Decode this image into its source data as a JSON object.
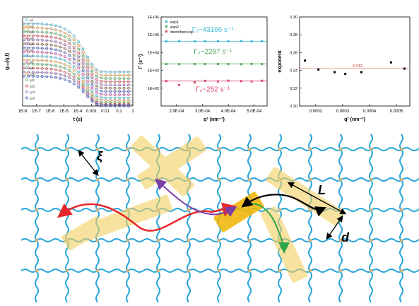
{
  "chart_data": [
    {
      "type": "scatter",
      "ylabel": "g₍₂₎(q,t)",
      "xlabel": "t (s)",
      "xscale": "log",
      "xlim": [
        1e-08,
        1
      ],
      "ylim": [
        1.0,
        2.1
      ],
      "xtick_labels": [
        "1E-8",
        "1E-7",
        "1E-6",
        "1E-5",
        "1E-4",
        "0.001",
        "0.01",
        "0.1",
        "1"
      ],
      "legend": [
        "q1",
        "q2",
        "q3",
        "q4",
        "q5",
        "q6",
        "q7",
        "q8",
        "q9",
        "q10",
        "q11",
        "q12",
        "q13",
        "q14"
      ],
      "series": [
        {
          "name": "q1",
          "color": "#3fb8d6",
          "plateau": 2.02,
          "baseline": 1.42,
          "tau": 0.0004
        },
        {
          "name": "q2",
          "color": "#e89a3c",
          "plateau": 1.97,
          "baseline": 1.38,
          "tau": 0.0004
        },
        {
          "name": "q3",
          "color": "#52a95c",
          "plateau": 1.92,
          "baseline": 1.34,
          "tau": 0.0004
        },
        {
          "name": "q4",
          "color": "#d9464f",
          "plateau": 1.87,
          "baseline": 1.3,
          "tau": 0.0004
        },
        {
          "name": "q5",
          "color": "#8e62b5",
          "plateau": 1.82,
          "baseline": 1.26,
          "tau": 0.0004
        },
        {
          "name": "q6",
          "color": "#8b5a3a",
          "plateau": 1.77,
          "baseline": 1.22,
          "tau": 0.0004
        },
        {
          "name": "q7",
          "color": "#3a56c5",
          "plateau": 1.72,
          "baseline": 1.18,
          "tau": 0.0004
        },
        {
          "name": "q8",
          "color": "#d24aa5",
          "plateau": 1.67,
          "baseline": 1.14,
          "tau": 0.0004
        },
        {
          "name": "q9",
          "color": "#3fb8d6",
          "plateau": 1.62,
          "baseline": 1.1,
          "tau": 0.0004
        },
        {
          "name": "q10",
          "color": "#e89a3c",
          "plateau": 1.57,
          "baseline": 1.07,
          "tau": 0.0004
        },
        {
          "name": "q11",
          "color": "#52a95c",
          "plateau": 1.52,
          "baseline": 1.04,
          "tau": 0.0004
        },
        {
          "name": "q12",
          "color": "#d9464f",
          "plateau": 1.47,
          "baseline": 1.02,
          "tau": 0.0004
        },
        {
          "name": "q13",
          "color": "#8e62b5",
          "plateau": 1.42,
          "baseline": 1.01,
          "tau": 0.0004
        },
        {
          "name": "q14",
          "color": "#3a56c5",
          "plateau": 1.37,
          "baseline": 1.0,
          "tau": 0.0004
        }
      ]
    },
    {
      "type": "scatter",
      "yscale": "log",
      "ylabel": "Γ (s⁻¹)",
      "xlabel": "q² (nm⁻²)",
      "xlim": [
        0.00014,
        0.00055
      ],
      "ylim": [
        10,
        1000000
      ],
      "ytick_labels": [
        "1E+06",
        "1E+05",
        "1E+04",
        "1E+03",
        "1E+02"
      ],
      "xtick_labels": [
        "2.0E-04",
        "3.0E-04",
        "4.0E-04",
        "5.0E-04"
      ],
      "legend": [
        "exp1",
        "exp2",
        "stretched exp"
      ],
      "series": [
        {
          "name": "exp1",
          "color": "#3fb8d6",
          "fit": 43166,
          "x": [
            0.00016,
            0.00021,
            0.00027,
            0.00031,
            0.00036,
            0.0004,
            0.00045,
            0.00049,
            0.00053
          ],
          "y": [
            43166,
            43500,
            42800,
            43900,
            43000,
            43400,
            44200,
            42700,
            43600
          ]
        },
        {
          "name": "exp2",
          "color": "#52a95c",
          "fit": 2287,
          "x": [
            0.00016,
            0.00021,
            0.00027,
            0.00031,
            0.00036,
            0.0004,
            0.00045,
            0.00049,
            0.00053
          ],
          "y": [
            2287,
            2260,
            2310,
            2280,
            2300,
            2290,
            2250,
            2320,
            2270
          ]
        },
        {
          "name": "stretched exp",
          "color": "#d94a6b",
          "fit": 252,
          "x": [
            0.00016,
            0.00021,
            0.00027,
            0.00031,
            0.00036,
            0.0004,
            0.00045,
            0.00049,
            0.00053
          ],
          "y": [
            252,
            150,
            210,
            260,
            240,
            265,
            250,
            240,
            262
          ]
        }
      ],
      "annotations": [
        {
          "series": 0,
          "label": "Γ₁~43166 s⁻¹",
          "x": 0.00034,
          "y": 150000
        },
        {
          "series": 1,
          "label": "Γ₂~2287 s⁻¹",
          "x": 0.00034,
          "y": 8500
        },
        {
          "series": 2,
          "label": "Γₛ~252 s⁻¹",
          "x": 0.00034,
          "y": 65
        }
      ]
    },
    {
      "type": "scatter",
      "ylabel": "exponent",
      "xlabel": "q² (nm⁻²)",
      "xlim": [
        0.00014,
        0.00055
      ],
      "ylim": [
        0.2,
        0.3
      ],
      "ytick_labels": [
        "0.20",
        "0.22",
        "0.24",
        "0.26",
        "0.28",
        "0.30"
      ],
      "xtick_labels": [
        "0.0002",
        "0.0003",
        "0.0004",
        "0.0005"
      ],
      "fit_value": 0.242,
      "fit_label": "0.242",
      "x": [
        0.00016,
        0.00021,
        0.00027,
        0.00031,
        0.00037,
        0.00048,
        0.00053
      ],
      "y": [
        0.251,
        0.241,
        0.238,
        0.236,
        0.238,
        0.249,
        0.242
      ]
    }
  ],
  "schematic": {
    "labels": {
      "xi": "ξ",
      "L": "L",
      "d": "d"
    },
    "colors": {
      "network": "#29a6d9",
      "junction": "#d9b070",
      "rod": "#f5cf62",
      "rod_dark": "#f0b400",
      "arrow_red": "#e8262a",
      "arrow_purple": "#7a3fa6",
      "arrow_green": "#2fa44a"
    }
  }
}
